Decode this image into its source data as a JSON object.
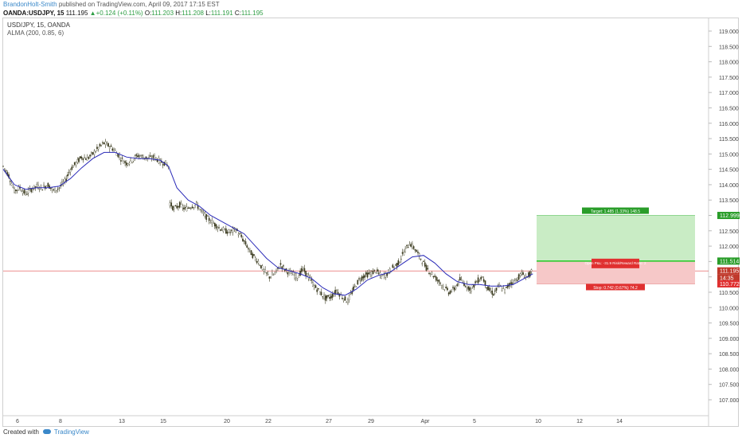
{
  "header": {
    "author": "BrandonHolt-Smith",
    "published": " published on TradingView.com, April 09, 2017 17:15 EST",
    "symbol": "OANDA:USDJPY, 15",
    "last": "111.195",
    "change": "+0.124 (+0.11%)",
    "o_label": "O:",
    "o_value": "111.203",
    "h_label": "H:",
    "h_value": "111.208",
    "l_label": "L:",
    "l_value": "111.191",
    "c_label": "C:",
    "c_value": "111.195"
  },
  "legend": {
    "title": "USD/JPY, 15, OANDA",
    "indicator": "ALMA (200, 0.85, 6)"
  },
  "footer": {
    "created_with": "Created with",
    "brand": "TradingView"
  },
  "colors": {
    "candle": "#3b3b1f",
    "alma": "#2a2ab8",
    "target_zone": "#c9ecc5",
    "stop_zone": "#f6c8c8",
    "entry_line": "#2ecc2e",
    "target_tag": "#2a9d2a",
    "stop_tag": "#e03030",
    "price_line": "#e04a4a"
  },
  "chart_data": {
    "type": "candlestick",
    "y_axis_ticks": [
      "119.000",
      "118.500",
      "118.000",
      "117.500",
      "117.000",
      "116.500",
      "116.000",
      "115.500",
      "115.000",
      "114.500",
      "114.000",
      "113.500",
      "113.000",
      "112.500",
      "112.000",
      "111.500",
      "111.000",
      "110.500",
      "110.000",
      "109.500",
      "109.000",
      "108.500",
      "108.000",
      "107.500",
      "107.000"
    ],
    "ylim": [
      106.8,
      119.4
    ],
    "x_axis_ticks": [
      "6",
      "8",
      "13",
      "15",
      "20",
      "22",
      "27",
      "29",
      "Apr",
      "5",
      "10",
      "12",
      "14"
    ],
    "price_levels": {
      "target": "112.999",
      "entry": "111.514",
      "last": "111.195",
      "time_to_close": "14:35",
      "stop": "110.772"
    },
    "position": {
      "target_label": "Target: 1.485 (1.33%) 148.5",
      "open_label": "Open P&L: -31.9 Risk/Reward Ratio: 2",
      "stop_label": "Stop: 0.742 (0.67%) 74.2"
    },
    "price_path": [
      [
        0,
        114.6
      ],
      [
        4,
        114.3
      ],
      [
        8,
        113.8
      ],
      [
        12,
        113.9
      ],
      [
        16,
        113.7
      ],
      [
        20,
        113.85
      ],
      [
        24,
        113.95
      ],
      [
        28,
        113.9
      ],
      [
        32,
        114.0
      ],
      [
        36,
        113.8
      ],
      [
        40,
        113.9
      ],
      [
        44,
        114.1
      ],
      [
        48,
        114.5
      ],
      [
        52,
        114.7
      ],
      [
        56,
        114.9
      ],
      [
        60,
        114.85
      ],
      [
        64,
        115.0
      ],
      [
        68,
        115.2
      ],
      [
        72,
        115.35
      ],
      [
        76,
        115.25
      ],
      [
        80,
        115.1
      ],
      [
        84,
        114.85
      ],
      [
        88,
        114.7
      ],
      [
        92,
        114.8
      ],
      [
        96,
        114.95
      ],
      [
        100,
        114.9
      ],
      [
        104,
        114.85
      ],
      [
        108,
        114.9
      ],
      [
        112,
        114.75
      ],
      [
        116,
        114.7
      ],
      [
        118,
        114.6
      ],
      [
        119,
        113.4
      ],
      [
        122,
        113.2
      ],
      [
        126,
        113.35
      ],
      [
        130,
        113.2
      ],
      [
        134,
        113.3
      ],
      [
        138,
        113.35
      ],
      [
        142,
        113.1
      ],
      [
        146,
        112.9
      ],
      [
        150,
        112.75
      ],
      [
        154,
        112.6
      ],
      [
        158,
        112.5
      ],
      [
        162,
        112.45
      ],
      [
        166,
        112.55
      ],
      [
        170,
        112.3
      ],
      [
        174,
        112.0
      ],
      [
        178,
        111.7
      ],
      [
        182,
        111.5
      ],
      [
        186,
        111.2
      ],
      [
        190,
        111.0
      ],
      [
        194,
        111.1
      ],
      [
        198,
        111.4
      ],
      [
        202,
        111.2
      ],
      [
        206,
        111.1
      ],
      [
        210,
        111.0
      ],
      [
        214,
        111.25
      ],
      [
        218,
        111.0
      ],
      [
        222,
        110.7
      ],
      [
        226,
        110.5
      ],
      [
        230,
        110.3
      ],
      [
        234,
        110.35
      ],
      [
        238,
        110.55
      ],
      [
        242,
        110.35
      ],
      [
        246,
        110.2
      ],
      [
        250,
        110.6
      ],
      [
        254,
        110.9
      ],
      [
        258,
        111.05
      ],
      [
        262,
        111.1
      ],
      [
        266,
        111.2
      ],
      [
        270,
        111.0
      ],
      [
        274,
        111.1
      ],
      [
        278,
        111.3
      ],
      [
        282,
        111.45
      ],
      [
        286,
        111.8
      ],
      [
        290,
        112.1
      ],
      [
        294,
        111.9
      ],
      [
        298,
        111.6
      ],
      [
        302,
        111.3
      ],
      [
        306,
        111.1
      ],
      [
        310,
        110.9
      ],
      [
        314,
        110.7
      ],
      [
        318,
        110.5
      ],
      [
        322,
        110.6
      ],
      [
        326,
        110.9
      ],
      [
        330,
        110.75
      ],
      [
        334,
        110.6
      ],
      [
        338,
        110.85
      ],
      [
        342,
        111.0
      ],
      [
        346,
        110.6
      ],
      [
        350,
        110.45
      ],
      [
        354,
        110.7
      ],
      [
        358,
        110.55
      ],
      [
        362,
        110.8
      ],
      [
        366,
        110.9
      ],
      [
        370,
        111.1
      ],
      [
        374,
        111.0
      ],
      [
        378,
        111.2
      ]
    ],
    "alma_path": [
      [
        0,
        114.5
      ],
      [
        8,
        114.0
      ],
      [
        16,
        113.85
      ],
      [
        24,
        113.9
      ],
      [
        32,
        113.9
      ],
      [
        40,
        113.95
      ],
      [
        48,
        114.2
      ],
      [
        56,
        114.55
      ],
      [
        64,
        114.85
      ],
      [
        72,
        115.05
      ],
      [
        80,
        115.05
      ],
      [
        88,
        114.9
      ],
      [
        96,
        114.85
      ],
      [
        104,
        114.85
      ],
      [
        112,
        114.8
      ],
      [
        118,
        114.6
      ],
      [
        124,
        113.9
      ],
      [
        132,
        113.5
      ],
      [
        140,
        113.3
      ],
      [
        148,
        113.0
      ],
      [
        156,
        112.8
      ],
      [
        164,
        112.6
      ],
      [
        172,
        112.4
      ],
      [
        180,
        112.0
      ],
      [
        188,
        111.6
      ],
      [
        196,
        111.3
      ],
      [
        204,
        111.2
      ],
      [
        212,
        111.1
      ],
      [
        220,
        110.95
      ],
      [
        228,
        110.65
      ],
      [
        236,
        110.45
      ],
      [
        244,
        110.4
      ],
      [
        252,
        110.6
      ],
      [
        260,
        110.9
      ],
      [
        268,
        111.05
      ],
      [
        276,
        111.15
      ],
      [
        284,
        111.4
      ],
      [
        292,
        111.65
      ],
      [
        300,
        111.7
      ],
      [
        308,
        111.45
      ],
      [
        316,
        111.1
      ],
      [
        324,
        110.85
      ],
      [
        332,
        110.75
      ],
      [
        340,
        110.75
      ],
      [
        348,
        110.7
      ],
      [
        356,
        110.7
      ],
      [
        364,
        110.75
      ],
      [
        372,
        110.95
      ],
      [
        378,
        111.1
      ]
    ]
  }
}
